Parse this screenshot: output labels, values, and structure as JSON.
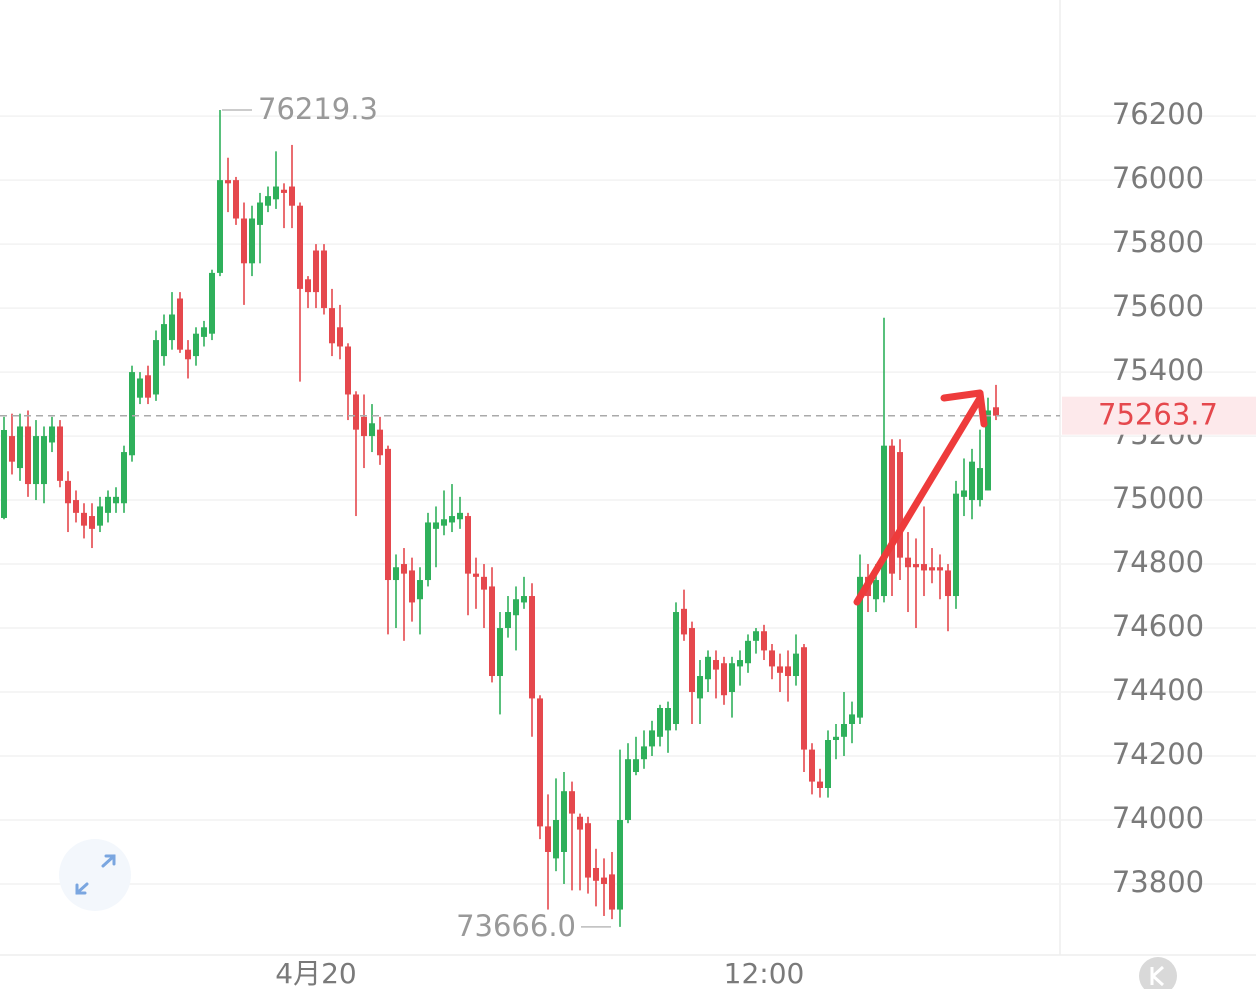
{
  "chart_data": {
    "type": "candlestick",
    "up_color": "#2fb05b",
    "down_color": "#e5484d",
    "ylim": [
      73578,
      76563
    ],
    "yticks": [
      73800,
      74000,
      74200,
      74400,
      74600,
      74800,
      75000,
      75200,
      75400,
      75600,
      75800,
      76000,
      76200
    ],
    "grid": true,
    "last_price": 75263.7,
    "annotations": [
      {
        "value": 76219.3,
        "label": "76219.3"
      },
      {
        "value": 73666,
        "label": "73666.0"
      }
    ],
    "categories": [
      null,
      null,
      null,
      null,
      null,
      null,
      null,
      null,
      null,
      null,
      null,
      null,
      null,
      null,
      null,
      null,
      null,
      null,
      null,
      null,
      null,
      null,
      null,
      null,
      null,
      null,
      null,
      null,
      null,
      null,
      null,
      null,
      null,
      null,
      null,
      null,
      null,
      null,
      null,
      "4月20",
      null,
      null,
      null,
      null,
      null,
      null,
      null,
      null,
      null,
      null,
      null,
      null,
      null,
      null,
      null,
      null,
      null,
      null,
      null,
      null,
      null,
      null,
      null,
      null,
      null,
      null,
      null,
      null,
      null,
      null,
      null,
      null,
      null,
      null,
      null,
      null,
      null,
      null,
      null,
      null,
      null,
      null,
      null,
      null,
      null,
      null,
      null,
      null,
      null,
      null,
      null,
      null,
      null,
      null,
      null,
      "12:00",
      null,
      null,
      null,
      null,
      null,
      null,
      null,
      null,
      null,
      null,
      null,
      null,
      null,
      null,
      null,
      null,
      null,
      null,
      null,
      null,
      null,
      null,
      null,
      null,
      null,
      null,
      null,
      null,
      null
    ],
    "candles": [
      [
        74944,
        75260,
        74940,
        75219
      ],
      [
        75200,
        75270,
        75080,
        75120
      ],
      [
        75100,
        75270,
        75060,
        75230
      ],
      [
        75230,
        75280,
        75010,
        75050
      ],
      [
        75050,
        75250,
        75000,
        75200
      ],
      [
        75050,
        75230,
        74990,
        75200
      ],
      [
        75180,
        75260,
        75150,
        75230
      ],
      [
        75230,
        75250,
        75040,
        75060
      ],
      [
        75060,
        75090,
        74900,
        74990
      ],
      [
        75000,
        75030,
        74930,
        74960
      ],
      [
        74960,
        74990,
        74880,
        74920
      ],
      [
        74950,
        74990,
        74850,
        74910
      ],
      [
        74920,
        75010,
        74900,
        74980
      ],
      [
        74960,
        75030,
        74930,
        75010
      ],
      [
        74990,
        75040,
        74960,
        75010
      ],
      [
        74990,
        75170,
        74960,
        75150
      ],
      [
        75140,
        75420,
        75120,
        75400
      ],
      [
        75320,
        75400,
        75300,
        75380
      ],
      [
        75390,
        75420,
        75300,
        75320
      ],
      [
        75330,
        75530,
        75310,
        75500
      ],
      [
        75450,
        75580,
        75420,
        75550
      ],
      [
        75500,
        75650,
        75470,
        75580
      ],
      [
        75630,
        75650,
        75460,
        75470
      ],
      [
        75470,
        75500,
        75380,
        75440
      ],
      [
        75450,
        75540,
        75420,
        75520
      ],
      [
        75510,
        75560,
        75480,
        75540
      ],
      [
        75520,
        75720,
        75500,
        75710
      ],
      [
        75710,
        76219.3,
        75700,
        76000
      ],
      [
        76000,
        76070,
        75900,
        75990
      ],
      [
        76000,
        76010,
        75860,
        75880
      ],
      [
        75880,
        75930,
        75610,
        75740
      ],
      [
        75740,
        75920,
        75700,
        75880
      ],
      [
        75860,
        75960,
        75740,
        75930
      ],
      [
        75920,
        75980,
        75900,
        75950
      ],
      [
        75940,
        76090,
        75910,
        75980
      ],
      [
        75970,
        75990,
        75850,
        75960
      ],
      [
        75980,
        76110,
        75850,
        75920
      ],
      [
        75920,
        75930,
        75370,
        75660
      ],
      [
        75690,
        75700,
        75600,
        75650
      ],
      [
        75780,
        75800,
        75600,
        75650
      ],
      [
        75780,
        75800,
        75580,
        75600
      ],
      [
        75600,
        75660,
        75450,
        75490
      ],
      [
        75540,
        75610,
        75440,
        75480
      ],
      [
        75480,
        75490,
        75250,
        75330
      ],
      [
        75330,
        75340,
        74950,
        75220
      ],
      [
        75260,
        75330,
        75100,
        75200
      ],
      [
        75200,
        75300,
        75150,
        75240
      ],
      [
        75220,
        75260,
        75110,
        75140
      ],
      [
        75160,
        75170,
        74580,
        74750
      ],
      [
        74750,
        74830,
        74600,
        74790
      ],
      [
        74800,
        74850,
        74560,
        74770
      ],
      [
        74780,
        74820,
        74620,
        74680
      ],
      [
        74690,
        74790,
        74580,
        74750
      ],
      [
        74750,
        74960,
        74730,
        74930
      ],
      [
        74910,
        74980,
        74790,
        74930
      ],
      [
        74920,
        75030,
        74890,
        74940
      ],
      [
        74930,
        75050,
        74900,
        74950
      ],
      [
        74940,
        75010,
        74910,
        74960
      ],
      [
        74950,
        74960,
        74640,
        74770
      ],
      [
        74770,
        74820,
        74660,
        74760
      ],
      [
        74760,
        74800,
        74600,
        74720
      ],
      [
        74730,
        74790,
        74430,
        74450
      ],
      [
        74450,
        74650,
        74330,
        74600
      ],
      [
        74600,
        74700,
        74570,
        74650
      ],
      [
        74640,
        74730,
        74530,
        74690
      ],
      [
        74680,
        74760,
        74660,
        74700
      ],
      [
        74700,
        74740,
        74260,
        74380
      ],
      [
        74380,
        74390,
        73940,
        73980
      ],
      [
        73980,
        74080,
        73720,
        73900
      ],
      [
        73880,
        74130,
        73840,
        74000
      ],
      [
        73900,
        74150,
        73800,
        74090
      ],
      [
        74090,
        74120,
        73780,
        74020
      ],
      [
        74010,
        74020,
        73780,
        73970
      ],
      [
        73990,
        74010,
        73770,
        73820
      ],
      [
        73850,
        73910,
        73730,
        73810
      ],
      [
        73820,
        73880,
        73700,
        73800
      ],
      [
        73830,
        73900,
        73690,
        73720
      ],
      [
        73720,
        74220,
        73666,
        74000
      ],
      [
        74000,
        74240,
        73990,
        74190
      ],
      [
        74150,
        74260,
        74140,
        74190
      ],
      [
        74190,
        74280,
        74160,
        74230
      ],
      [
        74230,
        74310,
        74200,
        74280
      ],
      [
        74260,
        74360,
        74230,
        74350
      ],
      [
        74280,
        74370,
        74210,
        74350
      ],
      [
        74300,
        74680,
        74280,
        74650
      ],
      [
        74660,
        74720,
        74560,
        74580
      ],
      [
        74600,
        74620,
        74300,
        74400
      ],
      [
        74380,
        74500,
        74300,
        74450
      ],
      [
        74440,
        74530,
        74400,
        74510
      ],
      [
        74500,
        74530,
        74380,
        74470
      ],
      [
        74490,
        74510,
        74360,
        74390
      ],
      [
        74400,
        74510,
        74320,
        74490
      ],
      [
        74480,
        74530,
        74420,
        74500
      ],
      [
        74490,
        74580,
        74460,
        74560
      ],
      [
        74560,
        74600,
        74520,
        74590
      ],
      [
        74590,
        74610,
        74500,
        74530
      ],
      [
        74530,
        74550,
        74440,
        74480
      ],
      [
        74480,
        74520,
        74400,
        74460
      ],
      [
        74480,
        74530,
        74370,
        74450
      ],
      [
        74450,
        74580,
        74420,
        74520
      ],
      [
        74540,
        74550,
        74150,
        74220
      ],
      [
        74220,
        74240,
        74080,
        74120
      ],
      [
        74120,
        74160,
        74070,
        74100
      ],
      [
        74100,
        74280,
        74070,
        74250
      ],
      [
        74250,
        74300,
        74190,
        74260
      ],
      [
        74260,
        74400,
        74200,
        74300
      ],
      [
        74300,
        74370,
        74240,
        74330
      ],
      [
        74320,
        74830,
        74300,
        74760
      ],
      [
        74760,
        74800,
        74650,
        74700
      ],
      [
        74690,
        74800,
        74650,
        74750
      ],
      [
        74700,
        75570,
        74680,
        75170
      ],
      [
        75170,
        75190,
        74700,
        74770
      ],
      [
        75150,
        75190,
        74750,
        74820
      ],
      [
        74820,
        74900,
        74650,
        74790
      ],
      [
        74800,
        74880,
        74600,
        74790
      ],
      [
        74800,
        74980,
        74700,
        74780
      ],
      [
        74790,
        74850,
        74740,
        74780
      ],
      [
        74790,
        74830,
        74690,
        74780
      ],
      [
        74780,
        74800,
        74590,
        74700
      ],
      [
        74700,
        75060,
        74660,
        75020
      ],
      [
        75010,
        75130,
        74950,
        75030
      ],
      [
        75000,
        75160,
        74940,
        75120
      ],
      [
        75000,
        75220,
        74980,
        75100
      ],
      [
        75030,
        75320,
        75030,
        75280
      ],
      [
        75290,
        75360,
        75250,
        75263.7
      ]
    ]
  }
}
